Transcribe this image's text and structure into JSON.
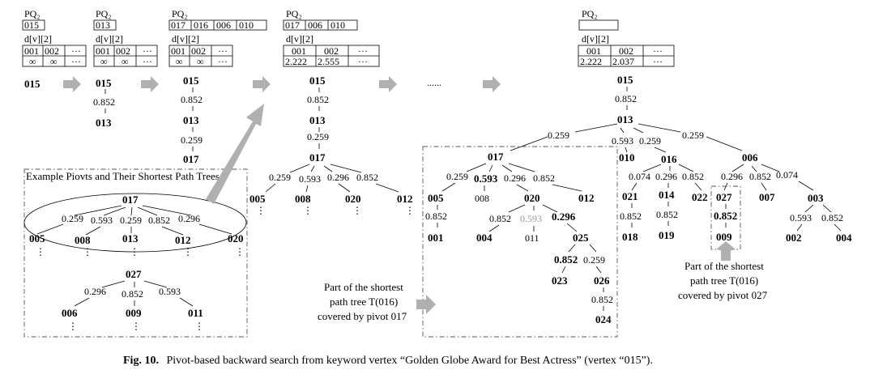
{
  "states": [
    {
      "pq_label": "PQ₂",
      "pq": [
        "015"
      ],
      "dv_label": "d[v][2]",
      "dv_head": [
        "001",
        "002",
        "···"
      ],
      "dv_val": [
        "∞",
        "∞",
        "···"
      ]
    },
    {
      "pq_label": "PQ₂",
      "pq": [
        "013"
      ],
      "dv_label": "d[v][2]",
      "dv_head": [
        "001",
        "002",
        "···"
      ],
      "dv_val": [
        "∞",
        "∞",
        "···"
      ]
    },
    {
      "pq_label": "PQ₂",
      "pq": [
        "017",
        "016",
        "006",
        "010"
      ],
      "dv_label": "d[v][2]",
      "dv_head": [
        "001",
        "002",
        "···"
      ],
      "dv_val": [
        "∞",
        "∞",
        "···"
      ]
    },
    {
      "pq_label": "PQ₂",
      "pq": [
        "017",
        "006",
        "010"
      ],
      "dv_label": "d[v][2]",
      "dv_head": [
        "001",
        "002",
        "···"
      ],
      "dv_val": [
        "2.222",
        "2.555",
        "···"
      ]
    },
    {
      "pq_label": "PQ₂",
      "pq": [],
      "dv_label": "d[v][2]",
      "dv_head": [
        "001",
        "002",
        "···"
      ],
      "dv_val": [
        "2.222",
        "2.037",
        "···"
      ]
    }
  ],
  "ellipsis": "......",
  "nodes": {
    "s1_015": "015",
    "s2_015": "015",
    "s2_w1": "0.852",
    "s2_013": "013",
    "s3_015": "015",
    "s3_w1": "0.852",
    "s3_013": "013",
    "s3_w2": "0.259",
    "s3_017": "017",
    "s4_015": "015",
    "s4_w1": "0.852",
    "s4_013": "013",
    "s4_w2": "0.259",
    "s4_017": "017",
    "s4_w_005": "0.259",
    "s4_w_008": "0.593",
    "s4_w_020": "0.296",
    "s4_w_012": "0.852",
    "s4_005": "005",
    "s4_008": "008",
    "s4_020": "020",
    "s4_012": "012",
    "f_015": "015",
    "f_w1": "0.852",
    "f_013": "013",
    "f_w_017": "0.259",
    "f_w_010": "0.593",
    "f_w_016": "0.259",
    "f_w_006": "0.259",
    "f_017": "017",
    "f_010": "010",
    "f_016": "016",
    "f_006": "006",
    "f_w17_005": "0.259",
    "f_w17_008": "0.593",
    "f_w17_020": "0.296",
    "f_w17_012": "0.852",
    "f_005": "005",
    "f_008": "008",
    "f_020": "020",
    "f_012": "012",
    "f_w_001": "0.852",
    "f_001": "001",
    "f_w_004": "0.852",
    "f_w_011": "0.593",
    "f_w_025": "0.296",
    "f_004": "004",
    "f_011": "011",
    "f_025": "025",
    "f_w_023": "0.852",
    "f_w_026": "0.259",
    "f_023": "023",
    "f_026": "026",
    "f_w_024": "0.852",
    "f_024": "024",
    "f_w16_021": "0.074",
    "f_w16_014": "0.296",
    "f_w16_022": "0.852",
    "f_021": "021",
    "f_014": "014",
    "f_022": "022",
    "f_w_018": "0.852",
    "f_018": "018",
    "f_w_019": "0.852",
    "f_019": "019",
    "f_w6_027": "0.296",
    "f_w6_007": "0.852",
    "f_w6_003": "0.074",
    "f_027": "027",
    "f_007": "007",
    "f_003": "003",
    "f_w_009": "0.852",
    "f_009": "009",
    "f_w_002": "0.593",
    "f_w_004b": "0.852",
    "f_002": "002",
    "f_004b": "004"
  },
  "example": {
    "title": "Example Piovts and Their Shortest Path Trees",
    "p017": "017",
    "w": [
      "0.259",
      "0.593",
      "0.259",
      "0.852",
      "0.296"
    ],
    "c": [
      "005",
      "008",
      "013",
      "012",
      "020"
    ],
    "p027": "027",
    "w2": [
      "0.296",
      "0.852",
      "0.593"
    ],
    "c2": [
      "006",
      "009",
      "011"
    ]
  },
  "annotations": {
    "left": [
      "Part of the shortest",
      "path tree T(016)",
      "covered by pivot 017"
    ],
    "right": [
      "Part of the shortest",
      "path tree T(016)",
      "covered by pivot 027"
    ]
  },
  "caption": {
    "label": "Fig. 10.",
    "text": "Pivot-based backward search from keyword vertex “Golden Globe Award for Best Actress” (vertex “015”)."
  }
}
